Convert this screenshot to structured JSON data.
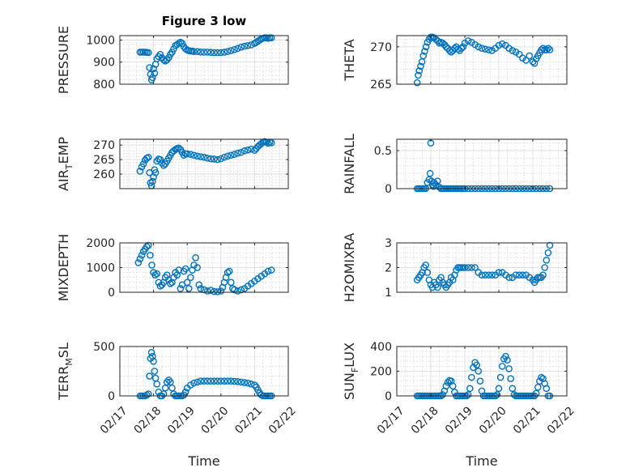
{
  "figure": {
    "title": "Figure 3 low",
    "x_axis_label": "Time",
    "marker_color": "#0072bd",
    "x_ticks": [
      "02/17",
      "02/18",
      "02/19",
      "02/20",
      "02/21",
      "02/22"
    ]
  },
  "chart_data": [
    {
      "type": "scatter",
      "ylabel_main": "PRESSURE",
      "ylabel_sub": "",
      "ylabel_tail": "",
      "ylim": [
        800,
        1020
      ],
      "yticks": [
        800,
        900,
        1000
      ],
      "grid": true,
      "x": [
        17.6,
        17.65,
        17.7,
        17.75,
        17.8,
        17.85,
        17.88,
        17.91,
        17.94,
        17.97,
        18.0,
        18.03,
        18.06,
        18.1,
        18.15,
        18.2,
        18.25,
        18.3,
        18.35,
        18.4,
        18.45,
        18.5,
        18.55,
        18.6,
        18.65,
        18.7,
        18.75,
        18.8,
        18.85,
        18.9,
        18.95,
        19.0,
        19.05,
        19.1,
        19.15,
        19.2,
        19.3,
        19.4,
        19.5,
        19.6,
        19.7,
        19.8,
        19.9,
        20.0,
        20.1,
        20.2,
        20.3,
        20.4,
        20.5,
        20.6,
        20.7,
        20.8,
        20.9,
        21.0,
        21.05,
        21.1,
        21.15,
        21.2,
        21.25,
        21.3,
        21.35,
        21.4,
        21.45,
        21.5
      ],
      "y": [
        945,
        945,
        945,
        945,
        944,
        943,
        875,
        845,
        820,
        830,
        870,
        850,
        890,
        915,
        925,
        935,
        920,
        910,
        905,
        910,
        920,
        935,
        945,
        960,
        975,
        980,
        985,
        990,
        985,
        970,
        960,
        955,
        952,
        950,
        950,
        948,
        948,
        946,
        945,
        945,
        944,
        943,
        943,
        943,
        945,
        948,
        952,
        957,
        962,
        968,
        972,
        975,
        978,
        985,
        990,
        995,
        1000,
        1005,
        1008,
        1010,
        1010,
        1008,
        1010,
        1010
      ]
    },
    {
      "type": "scatter",
      "ylabel_main": "THETA",
      "ylabel_sub": "",
      "ylabel_tail": "",
      "ylim": [
        265,
        271.5
      ],
      "yticks": [
        265,
        270
      ],
      "grid": true,
      "x": [
        17.6,
        17.63,
        17.66,
        17.7,
        17.74,
        17.78,
        17.82,
        17.86,
        17.9,
        17.95,
        18.0,
        18.05,
        18.1,
        18.15,
        18.2,
        18.25,
        18.3,
        18.35,
        18.4,
        18.45,
        18.5,
        18.55,
        18.6,
        18.65,
        18.7,
        18.75,
        18.8,
        18.85,
        18.9,
        18.95,
        19.0,
        19.1,
        19.2,
        19.3,
        19.4,
        19.5,
        19.6,
        19.7,
        19.8,
        19.9,
        20.0,
        20.1,
        20.2,
        20.3,
        20.4,
        20.5,
        20.6,
        20.7,
        20.8,
        20.9,
        21.0,
        21.05,
        21.1,
        21.15,
        21.2,
        21.25,
        21.3,
        21.35,
        21.4,
        21.45,
        21.5
      ],
      "y": [
        265.2,
        266.2,
        266.8,
        267.4,
        268.0,
        268.8,
        269.4,
        270.0,
        270.6,
        271.0,
        271.3,
        271.3,
        271.2,
        271.0,
        270.8,
        270.5,
        270.6,
        270.5,
        270.3,
        270.0,
        269.8,
        269.5,
        269.3,
        269.5,
        269.8,
        270.0,
        269.7,
        269.5,
        269.8,
        270.0,
        270.5,
        270.8,
        270.6,
        270.3,
        270.0,
        269.8,
        269.7,
        269.6,
        269.5,
        269.8,
        270.2,
        270.4,
        270.2,
        269.8,
        269.5,
        269.3,
        269.0,
        268.5,
        268.2,
        268.8,
        268.0,
        267.8,
        268.4,
        268.8,
        269.2,
        269.6,
        269.8,
        269.6,
        269.6,
        269.8,
        269.6
      ]
    },
    {
      "type": "scatter",
      "ylabel_main": "AIR",
      "ylabel_sub": "T",
      "ylabel_tail": "EMP",
      "ylim": [
        255,
        272
      ],
      "yticks": [
        260,
        265,
        270
      ],
      "grid": true,
      "x": [
        17.6,
        17.65,
        17.7,
        17.75,
        17.8,
        17.85,
        17.88,
        17.91,
        17.94,
        17.97,
        18.0,
        18.03,
        18.06,
        18.1,
        18.15,
        18.2,
        18.25,
        18.3,
        18.35,
        18.4,
        18.45,
        18.5,
        18.55,
        18.6,
        18.65,
        18.7,
        18.75,
        18.8,
        18.85,
        18.9,
        18.95,
        19.0,
        19.1,
        19.2,
        19.3,
        19.4,
        19.5,
        19.6,
        19.7,
        19.8,
        19.9,
        20.0,
        20.1,
        20.2,
        20.3,
        20.4,
        20.5,
        20.6,
        20.7,
        20.8,
        20.9,
        21.0,
        21.05,
        21.1,
        21.15,
        21.2,
        21.25,
        21.3,
        21.35,
        21.4,
        21.45,
        21.5
      ],
      "y": [
        261.0,
        262.5,
        263.5,
        264.8,
        265.5,
        265.8,
        260.5,
        257.0,
        256.0,
        257.5,
        259.0,
        261.5,
        260.5,
        264.5,
        265.2,
        265.0,
        263.8,
        263.0,
        263.5,
        264.5,
        265.5,
        266.5,
        267.5,
        268.0,
        268.5,
        268.8,
        269.0,
        268.5,
        267.5,
        266.5,
        267.0,
        267.0,
        266.8,
        266.5,
        266.2,
        266.0,
        265.8,
        265.5,
        265.3,
        265.2,
        265.0,
        265.3,
        265.8,
        266.2,
        266.5,
        266.8,
        267.2,
        267.5,
        268.0,
        268.3,
        268.6,
        268.2,
        268.8,
        269.5,
        270.0,
        270.5,
        271.0,
        271.2,
        271.0,
        270.6,
        271.0,
        270.8
      ]
    },
    {
      "type": "scatter",
      "ylabel_main": "RAINFALL",
      "ylabel_sub": "",
      "ylabel_tail": "",
      "ylim": [
        0,
        0.65
      ],
      "yticks": [
        0,
        0.5
      ],
      "grid": true,
      "x": [
        17.6,
        17.65,
        17.7,
        17.75,
        17.8,
        17.85,
        17.9,
        17.95,
        17.98,
        18.0,
        18.02,
        18.05,
        18.08,
        18.1,
        18.15,
        18.2,
        18.25,
        18.3,
        18.35,
        18.4,
        18.45,
        18.5,
        18.55,
        18.6,
        18.65,
        18.7,
        18.75,
        18.8,
        18.85,
        18.9,
        18.95,
        19.0,
        19.1,
        19.2,
        19.3,
        19.4,
        19.5,
        19.6,
        19.7,
        19.8,
        19.9,
        20.0,
        20.1,
        20.2,
        20.3,
        20.4,
        20.5,
        20.6,
        20.7,
        20.8,
        20.9,
        21.0,
        21.1,
        21.2,
        21.3,
        21.4,
        21.5
      ],
      "y": [
        0,
        0,
        0,
        0,
        0,
        0,
        0.08,
        0.12,
        0.2,
        0.6,
        0.1,
        0.05,
        0.03,
        0.08,
        0.05,
        0.1,
        0.02,
        0,
        0,
        0,
        0,
        0,
        0,
        0,
        0,
        0,
        0,
        0,
        0,
        0,
        0,
        0,
        0,
        0,
        0,
        0,
        0,
        0,
        0,
        0,
        0,
        0,
        0,
        0,
        0,
        0,
        0,
        0,
        0,
        0,
        0,
        0,
        0,
        0,
        0,
        0,
        0
      ]
    },
    {
      "type": "scatter",
      "ylabel_main": "MIXDEPTH",
      "ylabel_sub": "",
      "ylabel_tail": "",
      "ylim": [
        0,
        2000
      ],
      "yticks": [
        0,
        1000,
        2000
      ],
      "grid": true,
      "x": [
        17.55,
        17.6,
        17.65,
        17.7,
        17.75,
        17.8,
        17.85,
        17.9,
        17.95,
        18.0,
        18.05,
        18.1,
        18.15,
        18.2,
        18.25,
        18.3,
        18.35,
        18.4,
        18.45,
        18.5,
        18.55,
        18.6,
        18.65,
        18.7,
        18.75,
        18.8,
        18.85,
        18.9,
        18.95,
        19.0,
        19.05,
        19.1,
        19.15,
        19.2,
        19.25,
        19.3,
        19.35,
        19.4,
        19.5,
        19.6,
        19.7,
        19.8,
        19.9,
        20.0,
        20.05,
        20.1,
        20.15,
        20.2,
        20.25,
        20.3,
        20.35,
        20.4,
        20.5,
        20.6,
        20.7,
        20.8,
        20.9,
        21.0,
        21.1,
        21.2,
        21.3,
        21.4,
        21.5
      ],
      "y": [
        1200,
        1350,
        1500,
        1650,
        1750,
        1850,
        1900,
        1500,
        1100,
        800,
        700,
        750,
        400,
        250,
        300,
        400,
        600,
        700,
        500,
        350,
        400,
        600,
        800,
        700,
        900,
        150,
        300,
        850,
        950,
        400,
        150,
        600,
        900,
        1100,
        1400,
        1000,
        300,
        150,
        100,
        50,
        80,
        30,
        20,
        50,
        200,
        400,
        600,
        800,
        850,
        400,
        150,
        100,
        50,
        100,
        150,
        250,
        350,
        450,
        550,
        650,
        750,
        850,
        900
      ]
    },
    {
      "type": "scatter",
      "ylabel_main": "H2OMIXRA",
      "ylabel_sub": "",
      "ylabel_tail": "",
      "ylim": [
        1,
        3
      ],
      "yticks": [
        1,
        2,
        3
      ],
      "grid": true,
      "x": [
        17.6,
        17.65,
        17.7,
        17.75,
        17.8,
        17.85,
        17.9,
        17.95,
        18.0,
        18.05,
        18.1,
        18.15,
        18.2,
        18.25,
        18.3,
        18.35,
        18.4,
        18.45,
        18.5,
        18.55,
        18.6,
        18.65,
        18.7,
        18.75,
        18.8,
        18.85,
        18.9,
        18.95,
        19.0,
        19.1,
        19.2,
        19.3,
        19.4,
        19.5,
        19.6,
        19.7,
        19.8,
        19.9,
        20.0,
        20.1,
        20.2,
        20.3,
        20.4,
        20.5,
        20.6,
        20.7,
        20.8,
        20.9,
        21.0,
        21.05,
        21.1,
        21.15,
        21.2,
        21.25,
        21.3,
        21.35,
        21.4,
        21.45,
        21.5
      ],
      "y": [
        1.5,
        1.6,
        1.7,
        1.8,
        2.0,
        2.1,
        1.8,
        1.5,
        1.3,
        1.2,
        1.4,
        1.3,
        1.2,
        1.5,
        1.6,
        1.4,
        1.3,
        1.2,
        1.3,
        1.4,
        1.6,
        1.5,
        1.7,
        1.9,
        2.0,
        2.0,
        2.0,
        2.0,
        2.0,
        2.0,
        2.0,
        2.0,
        1.8,
        1.7,
        1.7,
        1.7,
        1.7,
        1.7,
        1.8,
        1.8,
        1.7,
        1.6,
        1.6,
        1.7,
        1.7,
        1.7,
        1.7,
        1.6,
        1.5,
        1.4,
        1.5,
        1.6,
        1.6,
        1.6,
        1.7,
        2.0,
        2.3,
        2.6,
        2.9
      ]
    },
    {
      "type": "scatter",
      "ylabel_main": "TERR",
      "ylabel_sub": "M",
      "ylabel_tail": "SL",
      "ylim": [
        0,
        500
      ],
      "yticks": [
        0,
        500
      ],
      "grid": true,
      "x": [
        17.6,
        17.65,
        17.7,
        17.75,
        17.8,
        17.85,
        17.88,
        17.91,
        17.94,
        17.97,
        18.0,
        18.03,
        18.06,
        18.1,
        18.15,
        18.2,
        18.25,
        18.3,
        18.35,
        18.4,
        18.45,
        18.5,
        18.55,
        18.6,
        18.65,
        18.7,
        18.75,
        18.8,
        18.85,
        18.9,
        18.95,
        19.0,
        19.1,
        19.2,
        19.3,
        19.4,
        19.5,
        19.6,
        19.7,
        19.8,
        19.9,
        20.0,
        20.1,
        20.2,
        20.3,
        20.4,
        20.5,
        20.6,
        20.7,
        20.8,
        20.9,
        21.0,
        21.05,
        21.1,
        21.15,
        21.2,
        21.25,
        21.3,
        21.35,
        21.4,
        21.45,
        21.5
      ],
      "y": [
        0,
        0,
        0,
        0,
        10,
        20,
        200,
        380,
        440,
        400,
        350,
        250,
        180,
        120,
        40,
        0,
        0,
        20,
        80,
        140,
        160,
        140,
        80,
        20,
        0,
        0,
        0,
        0,
        0,
        10,
        40,
        80,
        110,
        130,
        140,
        150,
        150,
        150,
        150,
        150,
        150,
        150,
        150,
        150,
        150,
        148,
        145,
        140,
        135,
        130,
        120,
        110,
        90,
        60,
        30,
        10,
        0,
        0,
        0,
        0,
        0,
        0
      ]
    },
    {
      "type": "scatter",
      "ylabel_main": "SUN",
      "ylabel_sub": "F",
      "ylabel_tail": "LUX",
      "ylim": [
        0,
        400
      ],
      "yticks": [
        0,
        200,
        400
      ],
      "grid": true,
      "x": [
        17.6,
        17.65,
        17.7,
        17.75,
        17.8,
        17.85,
        17.9,
        17.95,
        18.0,
        18.05,
        18.1,
        18.15,
        18.2,
        18.25,
        18.3,
        18.35,
        18.4,
        18.45,
        18.5,
        18.55,
        18.6,
        18.65,
        18.7,
        18.75,
        18.8,
        18.85,
        18.9,
        18.95,
        19.0,
        19.05,
        19.1,
        19.15,
        19.2,
        19.25,
        19.3,
        19.35,
        19.4,
        19.45,
        19.5,
        19.55,
        19.6,
        19.65,
        19.7,
        19.75,
        19.8,
        19.85,
        19.9,
        19.95,
        20.0,
        20.05,
        20.1,
        20.15,
        20.2,
        20.25,
        20.3,
        20.35,
        20.4,
        20.45,
        20.5,
        20.55,
        20.6,
        20.65,
        20.7,
        20.75,
        20.8,
        20.85,
        20.9,
        20.95,
        21.0,
        21.05,
        21.1,
        21.15,
        21.2,
        21.25,
        21.3,
        21.35,
        21.4,
        21.45,
        21.5
      ],
      "y": [
        0,
        0,
        0,
        0,
        0,
        0,
        0,
        0,
        0,
        0,
        0,
        0,
        0,
        0,
        0,
        10,
        40,
        80,
        110,
        125,
        120,
        80,
        30,
        0,
        0,
        0,
        0,
        0,
        0,
        0,
        10,
        60,
        150,
        230,
        270,
        250,
        200,
        120,
        40,
        0,
        0,
        0,
        0,
        0,
        0,
        0,
        0,
        10,
        60,
        150,
        240,
        300,
        320,
        290,
        220,
        140,
        60,
        10,
        0,
        0,
        0,
        0,
        0,
        0,
        0,
        0,
        0,
        0,
        0,
        0,
        20,
        70,
        120,
        150,
        140,
        100,
        60,
        0,
        0
      ]
    }
  ]
}
